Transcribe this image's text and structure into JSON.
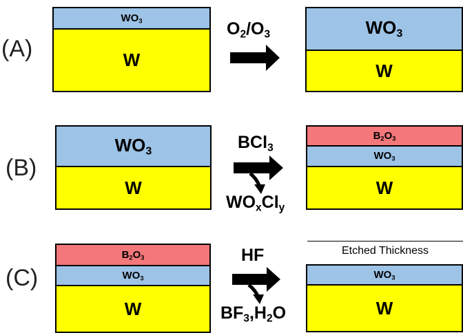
{
  "rows": {
    "a": {
      "label": "(A)",
      "left_top": "WO",
      "left_top_sub": "3",
      "left_bottom": "W",
      "reagent_main": "O",
      "reagent_sub1": "2",
      "reagent_mid": "/O",
      "reagent_sub2": "3",
      "right_top": "WO",
      "right_top_sub": "3",
      "right_bottom": "W"
    },
    "b": {
      "label": "(B)",
      "left_top": "WO",
      "left_top_sub": "3",
      "left_bottom": "W",
      "reagent_main": "BCl",
      "reagent_sub": "3",
      "product_main": "WO",
      "product_sub1": "x",
      "product_mid": "Cl",
      "product_sub2": "y",
      "right_top": "B",
      "right_top_sub1": "2",
      "right_top_mid": "O",
      "right_top_sub2": "3",
      "right_middle": "WO",
      "right_middle_sub": "3",
      "right_bottom": "W"
    },
    "c": {
      "label": "(C)",
      "left_top": "B",
      "left_top_sub1": "2",
      "left_top_mid": "O",
      "left_top_sub2": "3",
      "left_middle": "WO",
      "left_middle_sub": "3",
      "left_bottom": "W",
      "reagent": "HF",
      "product_main": "BF",
      "product_sub1": "3",
      "product_mid": ",H",
      "product_sub2": "2",
      "product_end": "O",
      "etched_label": "Etched Thickness",
      "right_top": "WO",
      "right_top_sub": "3",
      "right_bottom": "W"
    }
  },
  "colors": {
    "wo3": "#9dc3e6",
    "w": "#ffff00",
    "b2o3": "#f4777a"
  }
}
